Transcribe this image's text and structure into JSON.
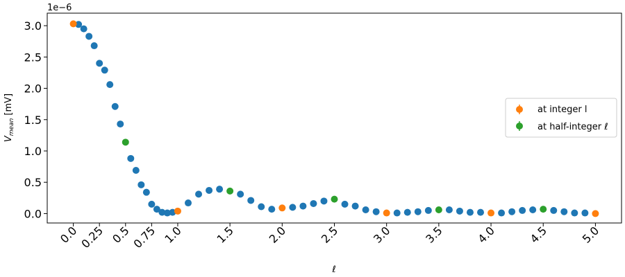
{
  "colors": {
    "all": "#1f77b4",
    "integer": "#ff7f0e",
    "half_integer": "#2ca02c",
    "axis": "#000000",
    "legend_border": "#cccccc"
  },
  "chart_data": {
    "type": "scatter",
    "xlabel": "ℓ",
    "ylabel_main": "V",
    "ylabel_sub": "mean",
    "ylabel_unit": " [mV]",
    "offset_text": "1e−6",
    "xlim": [
      -0.25,
      5.25
    ],
    "ylim": [
      -0.15,
      3.2
    ],
    "x_ticks": [
      {
        "v": 0.0,
        "label": "0.0"
      },
      {
        "v": 0.25,
        "label": "0.25"
      },
      {
        "v": 0.5,
        "label": "0.5"
      },
      {
        "v": 0.75,
        "label": "0.75"
      },
      {
        "v": 1.0,
        "label": "1.0"
      },
      {
        "v": 1.5,
        "label": "1.5"
      },
      {
        "v": 2.0,
        "label": "2.0"
      },
      {
        "v": 2.5,
        "label": "2.5"
      },
      {
        "v": 3.0,
        "label": "3.0"
      },
      {
        "v": 3.5,
        "label": "3.5"
      },
      {
        "v": 4.0,
        "label": "4.0"
      },
      {
        "v": 4.5,
        "label": "4.5"
      },
      {
        "v": 5.0,
        "label": "5.0"
      }
    ],
    "y_ticks": [
      {
        "v": 0.0,
        "label": "0.0"
      },
      {
        "v": 0.5,
        "label": "0.5"
      },
      {
        "v": 1.0,
        "label": "1.0"
      },
      {
        "v": 1.5,
        "label": "1.5"
      },
      {
        "v": 2.0,
        "label": "2.0"
      },
      {
        "v": 2.5,
        "label": "2.5"
      },
      {
        "v": 3.0,
        "label": "3.0"
      }
    ],
    "legend": {
      "placement": "center-right",
      "entries": [
        {
          "label": "at integer l",
          "color_key": "integer"
        },
        {
          "label": "at half-integer ℓ",
          "color_key": "half_integer"
        }
      ]
    },
    "series": [
      {
        "color_key": "all",
        "x": [
          0.05,
          0.1,
          0.15,
          0.2,
          0.25,
          0.3,
          0.35,
          0.4,
          0.45,
          0.55,
          0.6,
          0.65,
          0.7,
          0.75,
          0.8,
          0.85,
          0.9,
          0.95,
          1.1,
          1.2,
          1.3,
          1.4,
          1.6,
          1.7,
          1.8,
          1.9,
          2.1,
          2.2,
          2.3,
          2.4,
          2.6,
          2.7,
          2.8,
          2.9,
          3.1,
          3.2,
          3.3,
          3.4,
          3.6,
          3.7,
          3.8,
          3.9,
          4.1,
          4.2,
          4.3,
          4.4,
          4.6,
          4.7,
          4.8,
          4.9
        ],
        "y": [
          3.02,
          2.95,
          2.83,
          2.68,
          2.4,
          2.29,
          2.06,
          1.71,
          1.43,
          0.88,
          0.69,
          0.46,
          0.34,
          0.15,
          0.07,
          0.02,
          0.01,
          0.02,
          0.17,
          0.31,
          0.37,
          0.39,
          0.31,
          0.21,
          0.11,
          0.07,
          0.1,
          0.12,
          0.16,
          0.2,
          0.15,
          0.12,
          0.06,
          0.03,
          0.01,
          0.02,
          0.03,
          0.05,
          0.06,
          0.04,
          0.02,
          0.02,
          0.01,
          0.03,
          0.05,
          0.06,
          0.05,
          0.03,
          0.01,
          0.01
        ]
      },
      {
        "name": "at integer l",
        "color_key": "integer",
        "x": [
          0.0,
          1.0,
          2.0,
          3.0,
          4.0,
          5.0
        ],
        "y": [
          3.03,
          0.04,
          0.09,
          0.01,
          0.01,
          0.0
        ]
      },
      {
        "name": "at half-integer ℓ",
        "color_key": "half_integer",
        "x": [
          0.5,
          1.5,
          2.5,
          3.5,
          4.5
        ],
        "y": [
          1.14,
          0.36,
          0.23,
          0.06,
          0.07
        ]
      }
    ]
  }
}
